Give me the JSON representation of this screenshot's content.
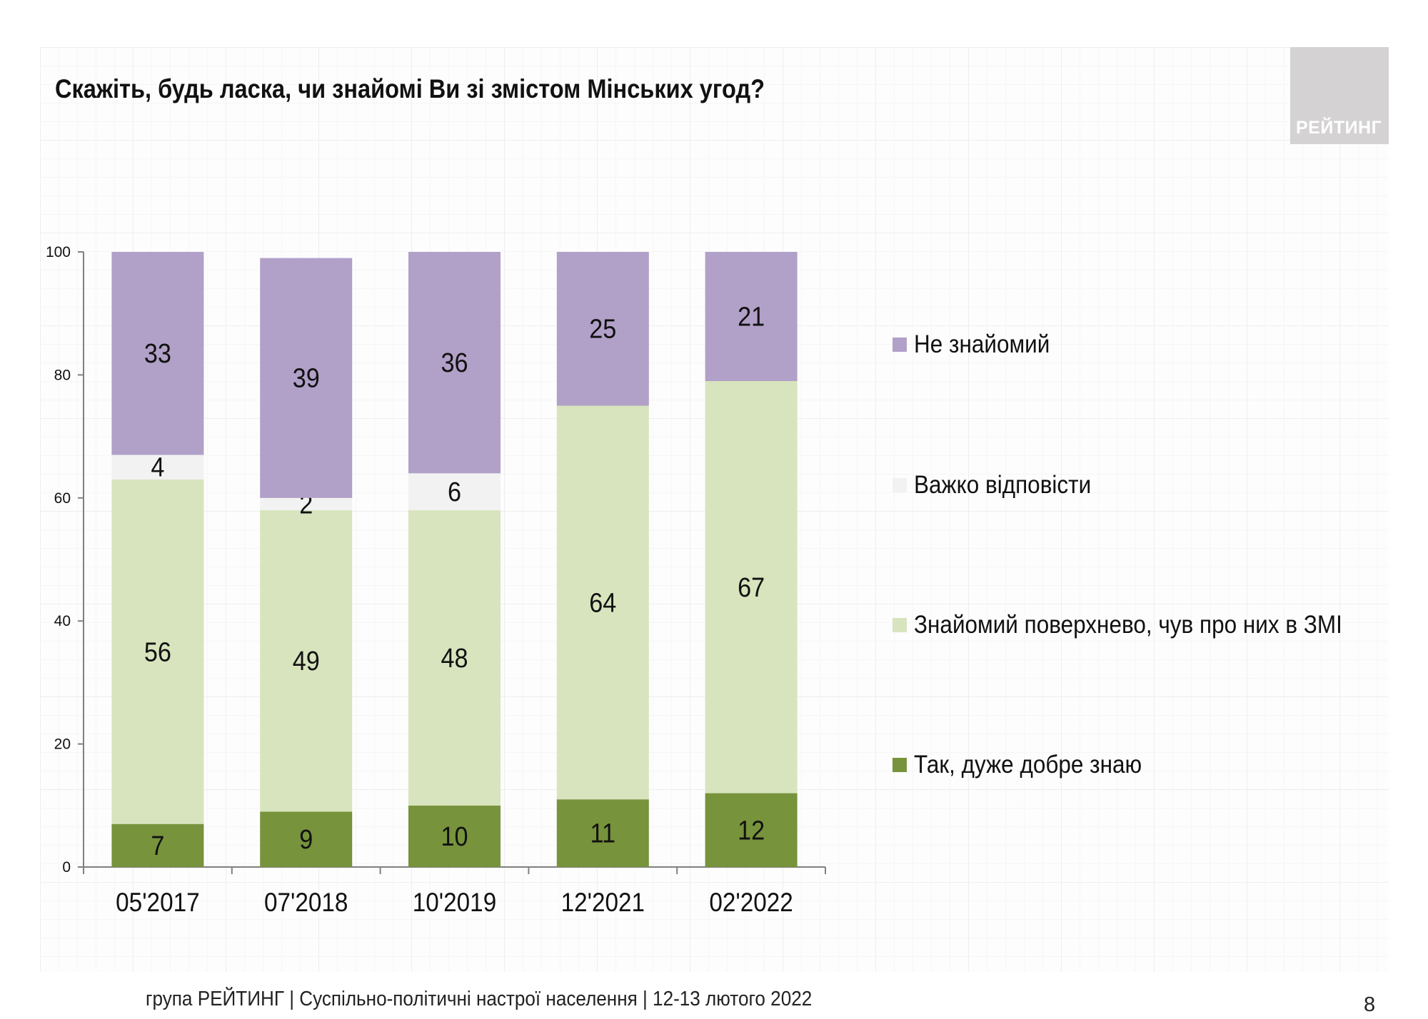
{
  "title": "Скажіть, будь ласка, чи знайомі Ви зі змістом Мінських угод?",
  "logo_text": "РЕЙТИНГ",
  "footer": "група РЕЙТИНГ | Суспільно-політичні настрої населення | 12-13 лютого 2022",
  "page_number": "8",
  "chart_data": {
    "type": "bar",
    "stacked": true,
    "categories": [
      "05'2017",
      "07'2018",
      "10'2019",
      "12'2021",
      "02'2022"
    ],
    "ylim": [
      0,
      100
    ],
    "yticks": [
      "0",
      "20",
      "40",
      "60",
      "80",
      "100"
    ],
    "grid": false,
    "legend_position": "right",
    "series": [
      {
        "name": "Так, дуже добре знаю",
        "color": "#77933c",
        "values": [
          7,
          9,
          10,
          11,
          12
        ]
      },
      {
        "name": "Знайомий поверхнево, чув про них в ЗМІ",
        "color": "#d7e4bd",
        "values": [
          56,
          49,
          48,
          64,
          67
        ]
      },
      {
        "name": "Важко відповісти",
        "color": "#f2f2f2",
        "values": [
          4,
          2,
          6,
          null,
          null
        ]
      },
      {
        "name": "Не знайомий",
        "color": "#b1a0c7",
        "values": [
          33,
          39,
          36,
          25,
          21
        ]
      }
    ]
  }
}
